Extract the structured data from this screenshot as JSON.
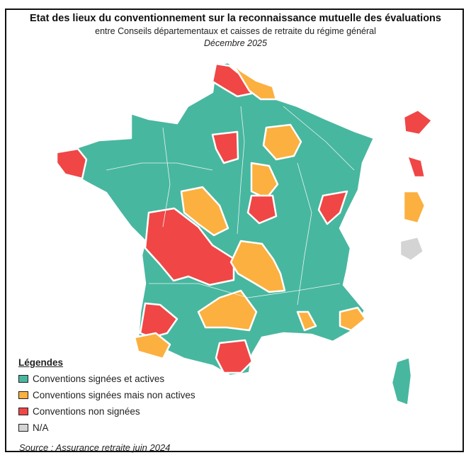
{
  "header": {
    "title": "Etat des lieux du conventionnement sur la reconnaissance mutuelle des évaluations",
    "subtitle": "entre Conseils départementaux et caisses de retraite du régime général",
    "date": "Décembre 2025"
  },
  "colors": {
    "signed_active": "#48b79f",
    "signed_inactive": "#fbb040",
    "not_signed": "#f04646",
    "na": "#d4d4d4"
  },
  "legend": {
    "title": "Légendes",
    "items": [
      {
        "label": "Conventions signées et actives",
        "color": "#48b79f"
      },
      {
        "label": "Conventions signées mais non actives",
        "color": "#fbb040"
      },
      {
        "label": "Conventions non signées",
        "color": "#f04646"
      },
      {
        "label": "N/A",
        "color": "#d4d4d4"
      }
    ]
  },
  "source": "Source : Assurance retraite juin 2024"
}
